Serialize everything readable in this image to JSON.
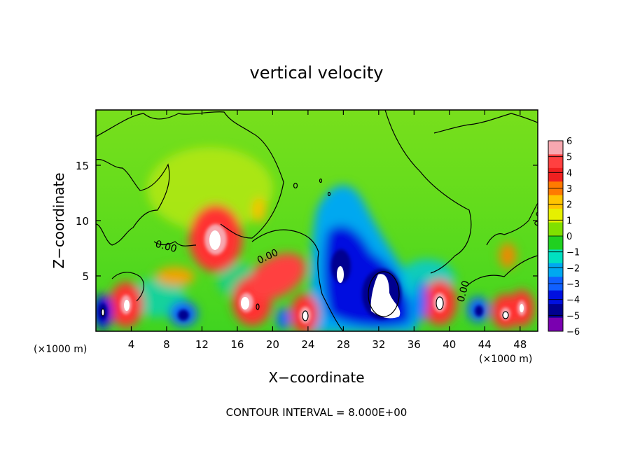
{
  "chart_data": {
    "type": "heatmap",
    "title": "vertical velocity",
    "xlabel": "X−coordinate",
    "ylabel": "Z−coordinate",
    "x_unit_left": "(×1000 m)",
    "x_unit_right": "(×1000 m)",
    "xlim": [
      0,
      50
    ],
    "ylim": [
      0,
      20
    ],
    "x_ticks": [
      "4",
      "8",
      "12",
      "16",
      "20",
      "24",
      "28",
      "32",
      "36",
      "40",
      "44",
      "48"
    ],
    "x_tick_values": [
      4,
      8,
      12,
      16,
      20,
      24,
      28,
      32,
      36,
      40,
      44,
      48
    ],
    "y_ticks": [
      "5",
      "10",
      "15"
    ],
    "y_tick_values": [
      5,
      10,
      15
    ],
    "footnote": "CONTOUR INTERVAL = 8.000E+00",
    "contour_labels": [
      "0.00",
      "0.00",
      "0.00",
      "0.00"
    ],
    "colorbar": {
      "ticks": [
        "6",
        "5",
        "4",
        "3",
        "2",
        "1",
        "0",
        "−1",
        "−2",
        "−3",
        "−4",
        "−5",
        "−6"
      ],
      "values": [
        6,
        5,
        4,
        3,
        2,
        1,
        0,
        -1,
        -2,
        -3,
        -4,
        -5,
        -6
      ],
      "colors": [
        "#f7a8b0",
        "#ff4040",
        "#f02020",
        "#ff7a00",
        "#ffc400",
        "#e6f000",
        "#80e000",
        "#20d020",
        "#00e0c0",
        "#00a8f0",
        "#1060ff",
        "#0010e0",
        "#000090",
        "#7a00b0"
      ]
    },
    "features": [
      {
        "x": 13.5,
        "z": 8.3,
        "value": 6
      },
      {
        "x": 2.6,
        "z": 2.3,
        "value": 6
      },
      {
        "x": 0.9,
        "z": 1.7,
        "value": -5
      },
      {
        "x": 18.3,
        "z": 2.7,
        "value": 6
      },
      {
        "x": 19.5,
        "z": 4.5,
        "value": 5
      },
      {
        "x": 23.8,
        "z": 1.7,
        "value": 6
      },
      {
        "x": 27.7,
        "z": 5.3,
        "value": -6
      },
      {
        "x": 28.5,
        "z": 3.5,
        "value": -5
      },
      {
        "x": 32.0,
        "z": 2.8,
        "value": -6
      },
      {
        "x": 34.5,
        "z": 4.5,
        "value": -4
      },
      {
        "x": 38.7,
        "z": 2.6,
        "value": 6
      },
      {
        "x": 43.3,
        "z": 1.8,
        "value": -4
      },
      {
        "x": 46.3,
        "z": 2.0,
        "value": 6
      },
      {
        "x": 48.0,
        "z": 2.0,
        "value": 6
      },
      {
        "x": 10.0,
        "z": 1.6,
        "value": -4
      },
      {
        "x": 18.5,
        "z": 10.8,
        "value": 2
      },
      {
        "x": 26.0,
        "z": 8.0,
        "value": -3
      },
      {
        "x": 46.5,
        "z": 6.8,
        "value": 4
      }
    ]
  }
}
